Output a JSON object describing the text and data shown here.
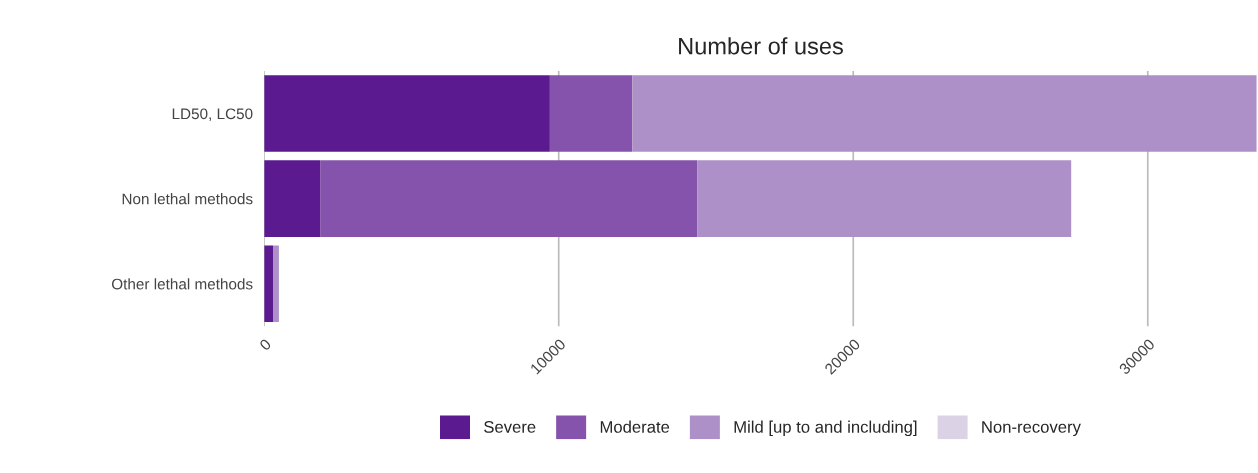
{
  "chart_data": {
    "type": "bar",
    "title": "Number of uses",
    "orientation": "horizontal",
    "stacked": true,
    "categories": [
      "LD50, LC50",
      "Non lethal methods",
      "Other lethal methods"
    ],
    "series": [
      {
        "name": "Severe",
        "color": "#5b1a8f",
        "values": [
          9700,
          1900,
          300
        ]
      },
      {
        "name": "Moderate",
        "color": "#8553ab",
        "values": [
          2800,
          12800,
          null
        ]
      },
      {
        "name": "Mild [up to and including]",
        "color": "#ae90c8",
        "values": [
          21200,
          12700,
          200
        ]
      },
      {
        "name": "Non-recovery",
        "color": "#dcd2e6",
        "values": [
          null,
          null,
          null
        ]
      }
    ],
    "xlim": [
      0,
      33700
    ],
    "xticks": [
      0,
      10000,
      20000,
      30000
    ],
    "grid": "x",
    "legend": "bottom"
  }
}
